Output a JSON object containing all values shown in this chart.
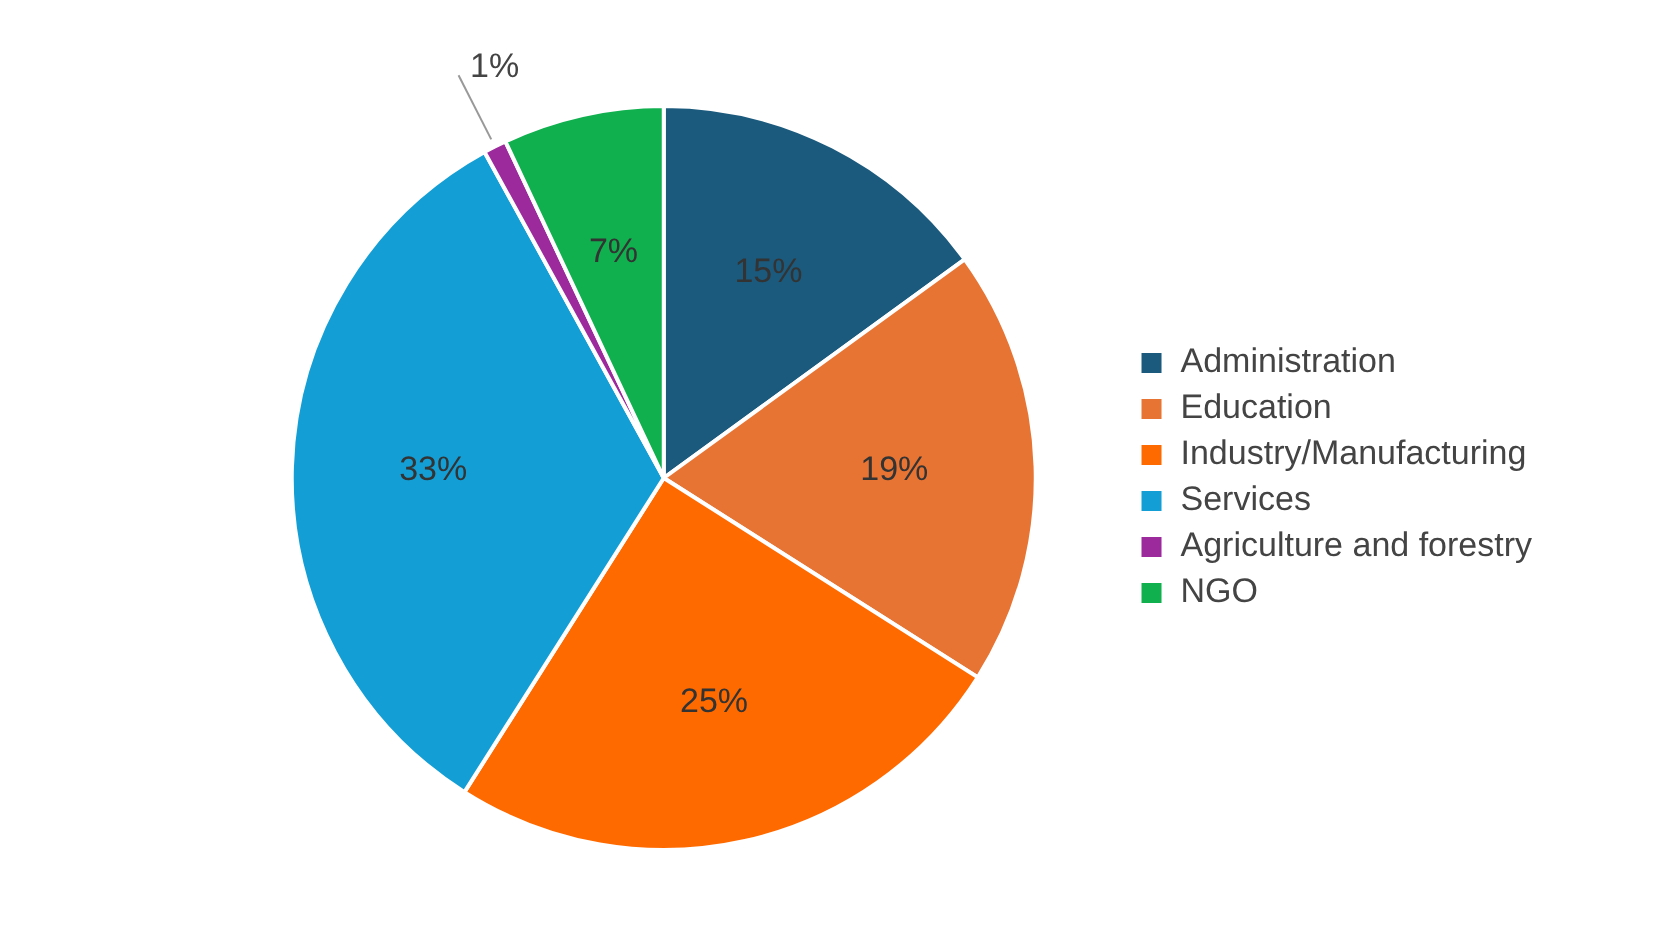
{
  "chart_data": {
    "type": "pie",
    "categories": [
      "Administration",
      "Education",
      "Industry/Manufacturing",
      "Services",
      "Agriculture and forestry",
      "NGO"
    ],
    "values": [
      15,
      19,
      25,
      33,
      1,
      7
    ],
    "colors": [
      "#1b5a7d",
      "#e87434",
      "#ff6a00",
      "#139fd6",
      "#9c2a9c",
      "#10b04f"
    ],
    "value_labels": [
      "15%",
      "19%",
      "25%",
      "33%",
      "1%",
      "7%"
    ],
    "legend": "right"
  }
}
